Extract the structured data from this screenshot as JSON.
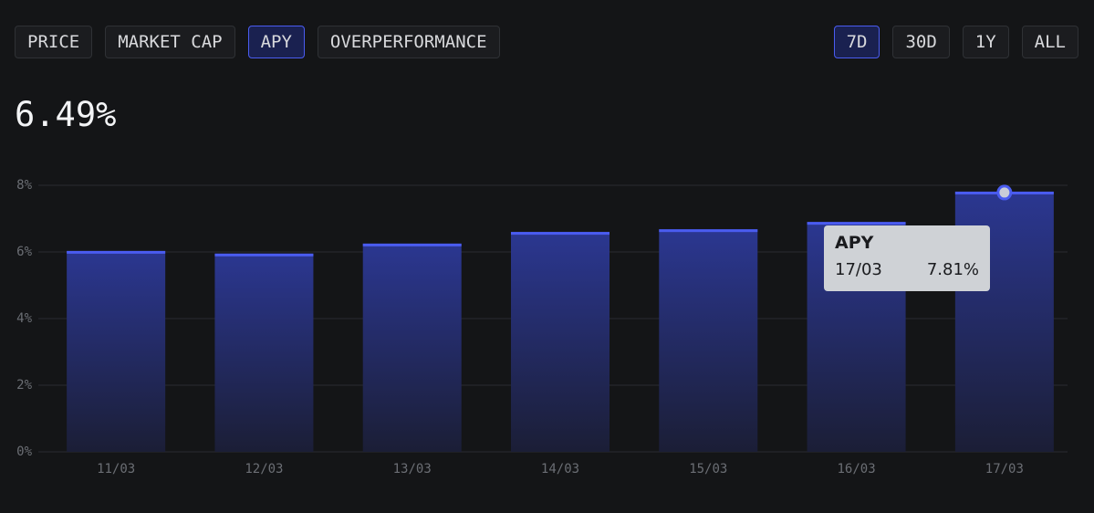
{
  "tabs": [
    {
      "label": "PRICE",
      "active": false
    },
    {
      "label": "MARKET CAP",
      "active": false
    },
    {
      "label": "APY",
      "active": true
    },
    {
      "label": "OVERPERFORMANCE",
      "active": false
    }
  ],
  "ranges": [
    {
      "label": "7D",
      "active": true
    },
    {
      "label": "30D",
      "active": false
    },
    {
      "label": "1Y",
      "active": false
    },
    {
      "label": "ALL",
      "active": false
    }
  ],
  "headline": "6.49%",
  "chart_data": {
    "type": "bar",
    "categories": [
      "11/03",
      "12/03",
      "13/03",
      "14/03",
      "15/03",
      "16/03",
      "17/03"
    ],
    "values": [
      6.03,
      5.95,
      6.25,
      6.6,
      6.68,
      6.9,
      7.81
    ],
    "color": "#4a5cf0",
    "ylim": [
      0,
      8
    ],
    "yticks": [
      {
        "value": 0,
        "label": "0%"
      },
      {
        "value": 2,
        "label": "2%"
      },
      {
        "value": 4,
        "label": "4%"
      },
      {
        "value": 6,
        "label": "6%"
      },
      {
        "value": 8,
        "label": "8%"
      }
    ],
    "grid": true,
    "tooltip": {
      "index": 6,
      "title": "APY",
      "category": "17/03",
      "value_label": "7.81%"
    }
  }
}
